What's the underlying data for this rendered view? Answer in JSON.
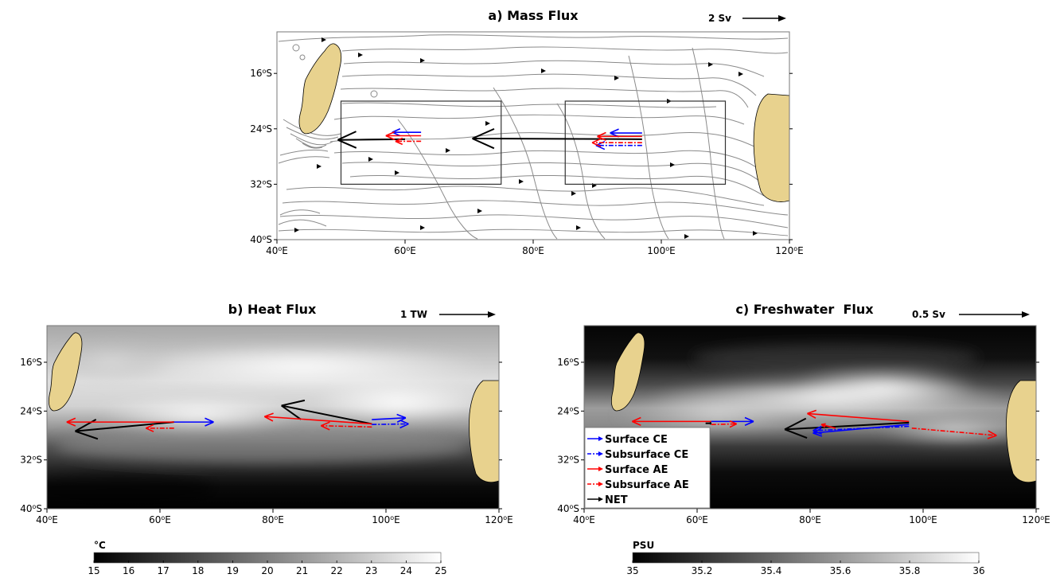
{
  "chart_data": [
    {
      "type": "map",
      "title": "a) Mass Flux",
      "scale_label": "2 Sv",
      "lon_ticks": [
        {
          "value": 40,
          "label": "40°E"
        },
        {
          "value": 60,
          "label": "60°E"
        },
        {
          "value": 80,
          "label": "80°E"
        },
        {
          "value": 100,
          "label": "100°E"
        },
        {
          "value": 120,
          "label": "120°E"
        }
      ],
      "lat_ticks": [
        {
          "value": -16,
          "label": "16°S"
        },
        {
          "value": -24,
          "label": "24°S"
        },
        {
          "value": -32,
          "label": "32°S"
        },
        {
          "value": -40,
          "label": "40°S"
        }
      ],
      "xlim": [
        40,
        120
      ],
      "ylim": [
        -40,
        -10
      ],
      "boxes": [
        {
          "lon": [
            50,
            75
          ],
          "lat": [
            -32,
            -20
          ]
        },
        {
          "lon": [
            85,
            110
          ],
          "lat": [
            -32,
            -20
          ]
        }
      ],
      "arrows": [
        {
          "series": "NET",
          "from": [
            60,
            -25.5
          ],
          "to": [
            49.5,
            -25.6
          ]
        },
        {
          "series": "NET",
          "from": [
            97,
            -25.5
          ],
          "to": [
            70.5,
            -25.4
          ]
        },
        {
          "series": "Surface CE",
          "from": [
            62.5,
            -24.5
          ],
          "to": [
            58,
            -24.5
          ]
        },
        {
          "series": "Surface AE",
          "from": [
            62.5,
            -25.0
          ],
          "to": [
            57,
            -25.0
          ]
        },
        {
          "series": "Subsurface AE",
          "from": [
            62.5,
            -25.8
          ],
          "to": [
            58.5,
            -25.8
          ]
        },
        {
          "series": "Surface CE",
          "from": [
            97,
            -24.6
          ],
          "to": [
            92,
            -24.6
          ]
        },
        {
          "series": "Surface AE",
          "from": [
            97,
            -25.1
          ],
          "to": [
            90,
            -25.1
          ]
        },
        {
          "series": "Subsurface CE",
          "from": [
            97,
            -26.4
          ],
          "to": [
            89.8,
            -26.4
          ]
        },
        {
          "series": "Subsurface AE",
          "from": [
            97,
            -26.0
          ],
          "to": [
            89.2,
            -26.0
          ]
        }
      ]
    },
    {
      "type": "map",
      "title": "b) Heat Flux",
      "scale_label": "1 TW",
      "colorbar": {
        "unit": "°C",
        "min": 15,
        "max": 25,
        "ticks": [
          15,
          16,
          17,
          18,
          19,
          20,
          21,
          22,
          23,
          24,
          25
        ]
      },
      "lon_ticks": [
        {
          "value": 40,
          "label": "40°E"
        },
        {
          "value": 60,
          "label": "60°E"
        },
        {
          "value": 80,
          "label": "80°E"
        },
        {
          "value": 100,
          "label": "100°E"
        },
        {
          "value": 120,
          "label": "120°E"
        }
      ],
      "lat_ticks": [
        {
          "value": -16,
          "label": "16°S"
        },
        {
          "value": -24,
          "label": "24°S"
        },
        {
          "value": -32,
          "label": "32°S"
        },
        {
          "value": -40,
          "label": "40°S"
        }
      ],
      "xlim": [
        40,
        120
      ],
      "ylim": [
        -40,
        -10
      ],
      "arrows": [
        {
          "series": "NET",
          "from": [
            62.5,
            -25.8
          ],
          "to": [
            45,
            -27.3
          ]
        },
        {
          "series": "Surface AE",
          "from": [
            62.5,
            -25.8
          ],
          "to": [
            43.5,
            -25.8
          ]
        },
        {
          "series": "Surface CE",
          "from": [
            62.5,
            -25.8
          ],
          "to": [
            69.5,
            -25.8
          ]
        },
        {
          "series": "Subsurface AE",
          "from": [
            62.5,
            -26.8
          ],
          "to": [
            57.5,
            -26.8
          ]
        },
        {
          "series": "NET",
          "from": [
            97.5,
            -26.1
          ],
          "to": [
            81.5,
            -23.1
          ]
        },
        {
          "series": "Surface AE",
          "from": [
            97.5,
            -26.1
          ],
          "to": [
            78.5,
            -24.9
          ]
        },
        {
          "series": "Subsurface AE",
          "from": [
            97.5,
            -26.6
          ],
          "to": [
            88.5,
            -26.4
          ]
        },
        {
          "series": "Surface CE",
          "from": [
            97.5,
            -25.4
          ],
          "to": [
            103.5,
            -25.1
          ]
        },
        {
          "series": "Subsurface CE",
          "from": [
            97.5,
            -26.2
          ],
          "to": [
            104,
            -26.1
          ]
        }
      ]
    },
    {
      "type": "map",
      "title": "c) Freshwater  Flux",
      "scale_label": "0.5 Sv",
      "colorbar": {
        "unit": "PSU",
        "min": 35,
        "max": 36,
        "ticks": [
          35,
          35.2,
          35.4,
          35.6,
          35.8,
          36
        ]
      },
      "lon_ticks": [
        {
          "value": 40,
          "label": "40°E"
        },
        {
          "value": 60,
          "label": "60°E"
        },
        {
          "value": 80,
          "label": "80°E"
        },
        {
          "value": 100,
          "label": "100°E"
        },
        {
          "value": 120,
          "label": "120°E"
        }
      ],
      "lat_ticks": [
        {
          "value": -16,
          "label": "16°S"
        },
        {
          "value": -24,
          "label": "24°S"
        },
        {
          "value": -32,
          "label": "32°S"
        },
        {
          "value": -40,
          "label": "40°S"
        }
      ],
      "xlim": [
        40,
        120
      ],
      "ylim": [
        -40,
        -10
      ],
      "arrows": [
        {
          "series": "Surface AE",
          "from": [
            62.5,
            -25.7
          ],
          "to": [
            48.5,
            -25.7
          ]
        },
        {
          "series": "Surface CE",
          "from": [
            62.5,
            -25.7
          ],
          "to": [
            70,
            -25.7
          ]
        },
        {
          "series": "Subsurface AE",
          "from": [
            62.5,
            -26.2
          ],
          "to": [
            67,
            -26.1
          ]
        },
        {
          "series": "NET",
          "from": [
            61.5,
            -26.0
          ],
          "to": [
            62.5,
            -26.0
          ]
        },
        {
          "series": "Surface AE",
          "from": [
            97.5,
            -25.7
          ],
          "to": [
            79.5,
            -24.4
          ]
        },
        {
          "series": "NET",
          "from": [
            97.5,
            -25.9
          ],
          "to": [
            75.5,
            -27.0
          ]
        },
        {
          "series": "Surface CE",
          "from": [
            97.5,
            -26.2
          ],
          "to": [
            80.5,
            -27.6
          ]
        },
        {
          "series": "Subsurface CE",
          "from": [
            97.5,
            -26.5
          ],
          "to": [
            80.5,
            -27.2
          ]
        },
        {
          "series": "Subsurface AE",
          "from": [
            98,
            -26.8
          ],
          "to": [
            113,
            -28.0
          ]
        },
        {
          "series": "Surface AE",
          "from": [
            84.5,
            -26.8
          ],
          "to": [
            82,
            -26.2
          ]
        }
      ],
      "legend": {
        "position": "lower-left",
        "entries": [
          {
            "label": "Surface CE",
            "color": "#0000ff",
            "style": "solid"
          },
          {
            "label": "Subsurface CE",
            "color": "#0000ff",
            "style": "dashdot"
          },
          {
            "label": "Surface AE",
            "color": "#ff0000",
            "style": "solid"
          },
          {
            "label": "Subsurface AE",
            "color": "#ff0000",
            "style": "dashdot"
          },
          {
            "label": "NET",
            "color": "#000000",
            "style": "solid"
          }
        ]
      }
    }
  ]
}
